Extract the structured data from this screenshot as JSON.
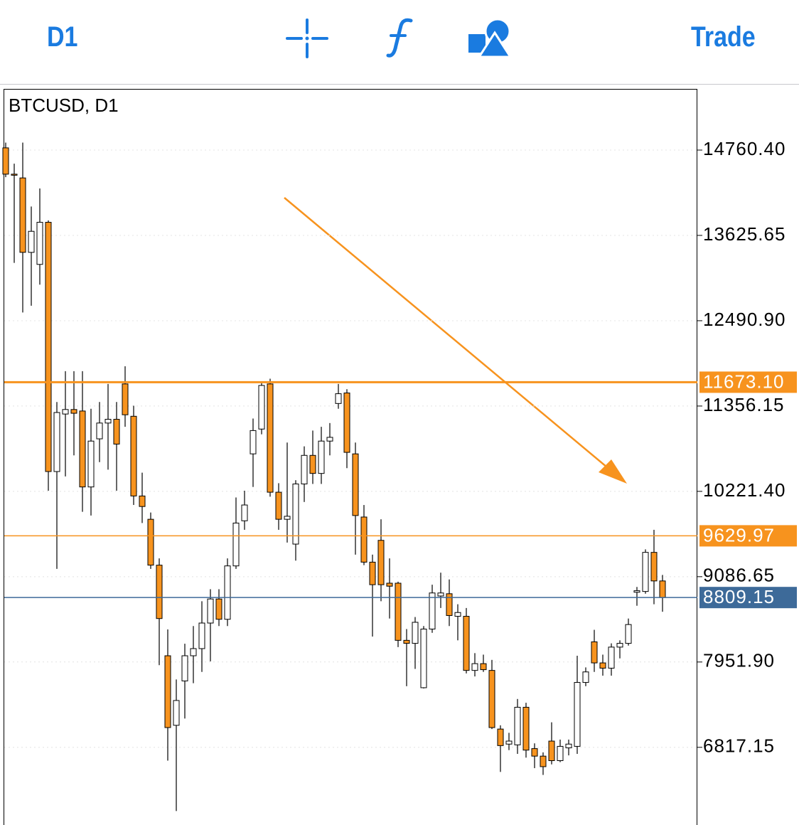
{
  "toolbar": {
    "timeframe": "D1",
    "trade": "Trade"
  },
  "chart_data": {
    "type": "candlestick",
    "title": "BTCUSD, D1",
    "up_color": "#ffffff",
    "down_color": "#f7931e",
    "open": [
      14790,
      14440,
      14390,
      13400,
      13240,
      13800,
      10485,
      11250,
      11310,
      11290,
      10280,
      10920,
      11130,
      11180,
      11650,
      11220,
      10160,
      9850,
      9240,
      8035,
      7110,
      7700,
      8035,
      8130,
      8470,
      8790,
      8520,
      9230,
      9830,
      10720,
      11050,
      11650,
      10210,
      9850,
      9520,
      10320,
      10700,
      10460,
      10890,
      11390,
      11530,
      10720,
      9880,
      9280,
      9570,
      9000,
      9000,
      8240,
      8200,
      7610,
      8390,
      8830,
      8860,
      8560,
      8560,
      7840,
      7930,
      7840,
      7060,
      6860,
      6850,
      7350,
      6800,
      6700,
      6900,
      6640,
      6810,
      6830,
      7680,
      8220,
      7940,
      7870,
      8150,
      8200,
      8880,
      8890,
      9410,
      9030
    ],
    "high": [
      14860,
      14580,
      14860,
      14010,
      14250,
      13825,
      11410,
      11820,
      11820,
      11820,
      11320,
      11410,
      11650,
      11410,
      11885,
      11360,
      10470,
      9940,
      9330,
      8385,
      7720,
      8195,
      8430,
      8760,
      8920,
      8920,
      9330,
      10140,
      10230,
      11190,
      11680,
      11720,
      10330,
      10870,
      10370,
      10820,
      11030,
      11080,
      11130,
      11650,
      11580,
      10870,
      10040,
      9380,
      9850,
      9330,
      9020,
      8390,
      8550,
      8430,
      8980,
      9140,
      9050,
      8720,
      8670,
      8070,
      8050,
      7980,
      7110,
      7010,
      7460,
      7410,
      6870,
      6750,
      7150,
      6920,
      6920,
      8035,
      7880,
      8380,
      8050,
      8200,
      8240,
      8530,
      8950,
      9450,
      9710,
      9110
    ],
    "low": [
      14400,
      13260,
      12600,
      12690,
      12970,
      10230,
      9190,
      10420,
      10700,
      9950,
      9900,
      10610,
      10510,
      10230,
      11080,
      10040,
      9800,
      9190,
      7910,
      6640,
      5970,
      7200,
      7670,
      7820,
      7960,
      8430,
      8430,
      9190,
      9710,
      10280,
      10980,
      10150,
      9710,
      9540,
      9300,
      10080,
      10320,
      10320,
      10700,
      11320,
      10530,
      9380,
      9240,
      8290,
      8760,
      8530,
      8150,
      7630,
      7860,
      7600,
      8340,
      8670,
      8430,
      8240,
      7800,
      7760,
      7820,
      7060,
      6490,
      6780,
      6730,
      6680,
      6540,
      6450,
      6590,
      6620,
      6710,
      6730,
      7630,
      7820,
      7770,
      7770,
      8000,
      8170,
      8700,
      8860,
      8720,
      8620
    ],
    "close": [
      14440,
      14430,
      13400,
      13680,
      13800,
      10485,
      11270,
      11310,
      11260,
      10280,
      10890,
      11130,
      11180,
      10850,
      11240,
      10160,
      10020,
      9240,
      8530,
      7080,
      7440,
      8035,
      8130,
      8470,
      8790,
      8520,
      9230,
      9800,
      10040,
      11030,
      11630,
      10210,
      9850,
      9890,
      10320,
      10700,
      10460,
      10890,
      10940,
      11520,
      10740,
      9900,
      9280,
      8980,
      8980,
      8960,
      8240,
      8200,
      8480,
      8390,
      8870,
      8870,
      8570,
      8610,
      7840,
      7930,
      7850,
      7080,
      6840,
      6900,
      7350,
      6780,
      6700,
      6560,
      6640,
      6830,
      6860,
      7680,
      7820,
      7940,
      7870,
      8150,
      8200,
      8450,
      8900,
      9410,
      9030,
      8809.15
    ],
    "ylim": [
      5784,
      15574
    ],
    "yticks": [
      {
        "value": 14760.4,
        "label": "14760.40"
      },
      {
        "value": 13625.65,
        "label": "13625.65"
      },
      {
        "value": 12490.9,
        "label": "12490.90"
      },
      {
        "value": 11356.15,
        "label": "11356.15"
      },
      {
        "value": 10221.4,
        "label": "10221.40"
      },
      {
        "value": 9086.65,
        "label": "9086.65"
      },
      {
        "value": 7951.9,
        "label": "7951.90"
      },
      {
        "value": 6817.15,
        "label": "6817.15"
      }
    ],
    "levels": [
      {
        "value": 11673.1,
        "label": "11673.10",
        "color": "#f7931e"
      },
      {
        "value": 9629.97,
        "label": "9629.97",
        "color": "#f7931e"
      },
      {
        "value": 8809.15,
        "label": "8809.15",
        "color": "#3d6a99"
      }
    ],
    "grid": true
  }
}
